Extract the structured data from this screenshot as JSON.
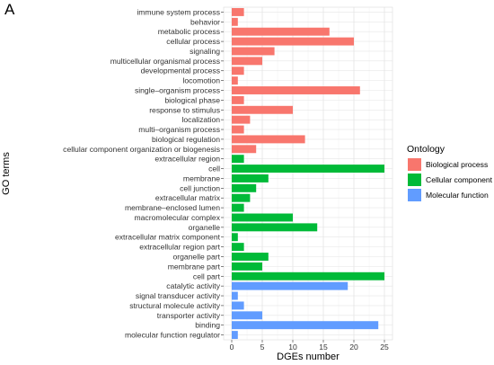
{
  "panel_label": "A",
  "chart_data": {
    "type": "bar",
    "orientation": "horizontal",
    "xlabel": "DGEs number",
    "ylabel": "GO terms",
    "xlim": [
      0,
      26.5
    ],
    "xticks": [
      0,
      5,
      10,
      15,
      20,
      25
    ],
    "grid": true,
    "legend": {
      "title": "Ontology",
      "placement": "right",
      "entries": [
        {
          "name": "Biological process",
          "color": "#F8766D"
        },
        {
          "name": "Cellular component",
          "color": "#00BA38"
        },
        {
          "name": "Molecular function",
          "color": "#619CFF"
        }
      ]
    },
    "categories": [
      {
        "label": "immune system process",
        "value": 2,
        "group": 0
      },
      {
        "label": "behavior",
        "value": 1,
        "group": 0
      },
      {
        "label": "metabolic process",
        "value": 16,
        "group": 0
      },
      {
        "label": "cellular process",
        "value": 20,
        "group": 0
      },
      {
        "label": "signaling",
        "value": 7,
        "group": 0
      },
      {
        "label": "multicellular organismal process",
        "value": 5,
        "group": 0
      },
      {
        "label": "developmental process",
        "value": 2,
        "group": 0
      },
      {
        "label": "locomotion",
        "value": 1,
        "group": 0
      },
      {
        "label": "single–organism process",
        "value": 21,
        "group": 0
      },
      {
        "label": "biological phase",
        "value": 2,
        "group": 0
      },
      {
        "label": "response to stimulus",
        "value": 10,
        "group": 0
      },
      {
        "label": "localization",
        "value": 3,
        "group": 0
      },
      {
        "label": "multi–organism process",
        "value": 2,
        "group": 0
      },
      {
        "label": "biological regulation",
        "value": 12,
        "group": 0
      },
      {
        "label": "cellular component organization or biogenesis",
        "value": 4,
        "group": 0
      },
      {
        "label": "extracellular region",
        "value": 2,
        "group": 1
      },
      {
        "label": "cell",
        "value": 25,
        "group": 1
      },
      {
        "label": "membrane",
        "value": 6,
        "group": 1
      },
      {
        "label": "cell junction",
        "value": 4,
        "group": 1
      },
      {
        "label": "extracellular matrix",
        "value": 3,
        "group": 1
      },
      {
        "label": "membrane–enclosed lumen",
        "value": 2,
        "group": 1
      },
      {
        "label": "macromolecular complex",
        "value": 10,
        "group": 1
      },
      {
        "label": "organelle",
        "value": 14,
        "group": 1
      },
      {
        "label": "extracellular matrix component",
        "value": 1,
        "group": 1
      },
      {
        "label": "extracellular region part",
        "value": 2,
        "group": 1
      },
      {
        "label": "organelle part",
        "value": 6,
        "group": 1
      },
      {
        "label": "membrane part",
        "value": 5,
        "group": 1
      },
      {
        "label": "cell part",
        "value": 25,
        "group": 1
      },
      {
        "label": "catalytic activity",
        "value": 19,
        "group": 2
      },
      {
        "label": "signal transducer activity",
        "value": 1,
        "group": 2
      },
      {
        "label": "structural molecule activity",
        "value": 2,
        "group": 2
      },
      {
        "label": "transporter activity",
        "value": 5,
        "group": 2
      },
      {
        "label": "binding",
        "value": 24,
        "group": 2
      },
      {
        "label": "molecular function regulator",
        "value": 1,
        "group": 2
      }
    ]
  }
}
